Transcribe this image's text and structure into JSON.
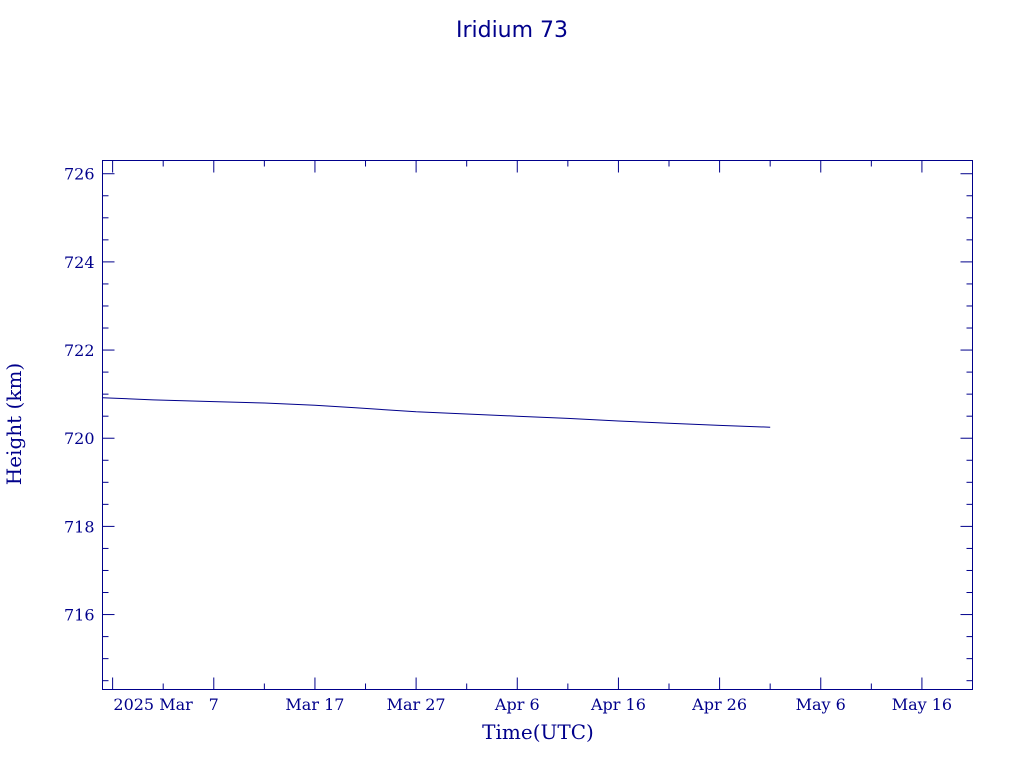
{
  "chart_data": {
    "type": "line",
    "title": "Iridium 73",
    "xlabel": "Time(UTC)",
    "ylabel": "Height (km)",
    "xlim": [
      "2025-02-24",
      "2025-05-21"
    ],
    "ylim": [
      714.3,
      726.3
    ],
    "y_ticks": [
      "716",
      "718",
      "720",
      "722",
      "724",
      "726"
    ],
    "x_ticks": [
      {
        "date": "2025-03-01",
        "label": "2025 Mar"
      },
      {
        "date": "2025-03-07",
        "label": "7"
      },
      {
        "date": "2025-03-17",
        "label": "Mar 17"
      },
      {
        "date": "2025-03-27",
        "label": "Mar 27"
      },
      {
        "date": "2025-04-06",
        "label": "Apr  6"
      },
      {
        "date": "2025-04-16",
        "label": "Apr 16"
      },
      {
        "date": "2025-04-26",
        "label": "Apr 26"
      },
      {
        "date": "2025-05-06",
        "label": "May  6"
      },
      {
        "date": "2025-05-16",
        "label": "May 16"
      }
    ],
    "series": [
      {
        "x": [
          "2025-02-24",
          "2025-03-01",
          "2025-03-07",
          "2025-03-12",
          "2025-03-17",
          "2025-03-21",
          "2025-03-27",
          "2025-04-01",
          "2025-04-06",
          "2025-04-11",
          "2025-04-16",
          "2025-04-21",
          "2025-04-26",
          "2025-05-01"
        ],
        "y": [
          720.92,
          720.87,
          720.83,
          720.8,
          720.75,
          720.69,
          720.6,
          720.55,
          720.5,
          720.45,
          720.39,
          720.34,
          720.29,
          720.25
        ]
      }
    ],
    "grid": false,
    "color": "#00008b"
  }
}
